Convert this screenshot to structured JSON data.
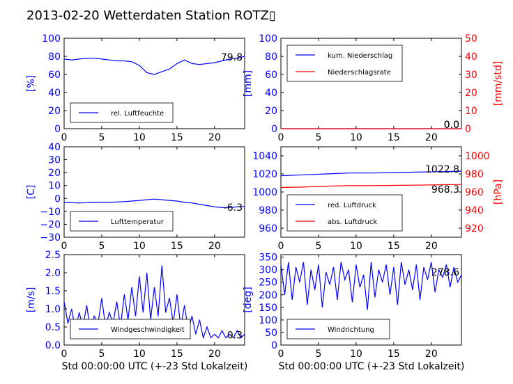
{
  "title": "2013-02-20 Wetterdaten Station ROTZ▯",
  "xlabel": "Std 00:00:00 UTC (+-23 Std Lokalzeit)",
  "colors": {
    "primary": "#0000ff",
    "secondary": "#ff0000"
  },
  "x_ticks": [
    "0",
    "5",
    "10",
    "15",
    "20"
  ],
  "chart_data": [
    {
      "id": "humidity",
      "type": "line",
      "ylabel": "[%]",
      "ylim": [
        0,
        100
      ],
      "yticks": [
        "0",
        "20",
        "40",
        "60",
        "80",
        "100"
      ],
      "legend": "rel. Luftfeuchte",
      "legend_loc": "lower-left",
      "annotation": "79.8",
      "series": [
        {
          "name": "rel. Luftfeuchte",
          "color": "#0000ff",
          "x": [
            0,
            1,
            2,
            3,
            4,
            5,
            6,
            7,
            8,
            9,
            10,
            11,
            12,
            13,
            14,
            15,
            16,
            17,
            18,
            19,
            20,
            21,
            22,
            23,
            24
          ],
          "y": [
            77,
            76,
            77,
            78,
            78,
            77,
            76,
            75,
            75,
            74,
            70,
            62,
            60,
            63,
            66,
            72,
            76,
            72,
            71,
            72,
            73,
            75,
            77,
            78,
            80
          ]
        }
      ]
    },
    {
      "id": "precip",
      "type": "line",
      "ylabel": "[mm]",
      "ylim": [
        0,
        100
      ],
      "yticks": [
        "0",
        "20",
        "40",
        "60",
        "80",
        "100"
      ],
      "ylabel2": "[mm/std]",
      "ylim2": [
        0,
        50
      ],
      "yticks2": [
        "0",
        "10",
        "20",
        "30",
        "40",
        "50"
      ],
      "legend_loc": "upper-left",
      "annotations": [
        "0.0",
        "0.0"
      ],
      "series": [
        {
          "name": "kum. Niederschlag",
          "color": "#0000ff",
          "axis": "left",
          "x": [
            0,
            24
          ],
          "y": [
            0,
            0
          ]
        },
        {
          "name": "Niederschlagsrate",
          "color": "#ff0000",
          "axis": "right",
          "x": [
            0,
            24
          ],
          "y": [
            0,
            0
          ]
        }
      ]
    },
    {
      "id": "temperature",
      "type": "line",
      "ylabel": "[C]",
      "ylim": [
        -30,
        40
      ],
      "yticks": [
        "−30",
        "−20",
        "−10",
        "0",
        "10",
        "20",
        "30",
        "40"
      ],
      "legend": "Lufttemperatur",
      "legend_loc": "lower-left",
      "annotation": "-6.3",
      "series": [
        {
          "name": "Lufttemperatur",
          "color": "#0000ff",
          "x": [
            0,
            2,
            4,
            6,
            8,
            10,
            11,
            12,
            13,
            14,
            15,
            16,
            17,
            18,
            19,
            20,
            21,
            22,
            23,
            24
          ],
          "y": [
            -3,
            -3.5,
            -3,
            -3,
            -2.5,
            -1.5,
            -1,
            -0.5,
            -1,
            -1.5,
            -2,
            -3,
            -3.5,
            -4.5,
            -5.5,
            -6.5,
            -7,
            -7,
            -6.5,
            -6.3
          ]
        }
      ]
    },
    {
      "id": "pressure",
      "type": "line",
      "ylabel": "",
      "ylim": [
        950,
        1050
      ],
      "yticks": [
        "960",
        "980",
        "1000",
        "1020",
        "1040"
      ],
      "ylabel2": "[hPa]",
      "ylim2": [
        910,
        1010
      ],
      "yticks2": [
        "920",
        "940",
        "960",
        "980",
        "1000"
      ],
      "legend_loc": "lower-left",
      "annotations": [
        "1022.8",
        "968.3"
      ],
      "series": [
        {
          "name": "red. Luftdruck",
          "color": "#0000ff",
          "axis": "left",
          "x": [
            0,
            3,
            6,
            9,
            12,
            15,
            18,
            21,
            24
          ],
          "y": [
            1018,
            1019,
            1020,
            1021,
            1021,
            1021.5,
            1022,
            1022.5,
            1023
          ]
        },
        {
          "name": "abs. Luftdruck",
          "color": "#ff0000",
          "axis": "right",
          "x": [
            0,
            3,
            6,
            9,
            12,
            15,
            18,
            21,
            24
          ],
          "y": [
            965,
            965.5,
            966.5,
            967,
            967,
            967.3,
            967.6,
            968,
            968.3
          ]
        }
      ]
    },
    {
      "id": "wind_speed",
      "type": "line",
      "ylabel": "[m/s]",
      "ylim": [
        0,
        2.5
      ],
      "yticks": [
        "0.0",
        "0.5",
        "1.0",
        "1.5",
        "2.0",
        "2.5"
      ],
      "legend": "Windgeschwindigkeit",
      "legend_loc": "lower-center",
      "annotation": "0.3",
      "series": [
        {
          "name": "Windgeschwindigkeit",
          "color": "#0000ff",
          "x": [
            0,
            0.5,
            1,
            1.5,
            2,
            2.5,
            3,
            3.5,
            4,
            4.5,
            5,
            5.5,
            6,
            6.5,
            7,
            7.5,
            8,
            8.5,
            9,
            9.5,
            10,
            10.5,
            11,
            11.5,
            12,
            12.5,
            13,
            13.5,
            14,
            14.5,
            15,
            15.5,
            16,
            16.5,
            17,
            17.5,
            18,
            18.5,
            19,
            19.5,
            20,
            20.5,
            21,
            21.5,
            22,
            22.5,
            23,
            23.5,
            24
          ],
          "y": [
            1.2,
            0.6,
            1.0,
            0.4,
            0.9,
            0.5,
            1.1,
            0.4,
            0.8,
            0.6,
            1.3,
            0.5,
            0.9,
            0.6,
            1.2,
            0.5,
            1.4,
            0.7,
            1.6,
            0.8,
            1.9,
            0.9,
            2.0,
            0.7,
            1.6,
            0.8,
            2.2,
            0.9,
            1.3,
            0.6,
            1.4,
            0.5,
            1.1,
            0.4,
            0.8,
            0.3,
            0.7,
            0.2,
            0.5,
            0.2,
            0.3,
            0.2,
            0.4,
            0.2,
            0.3,
            0.2,
            0.4,
            0.2,
            0.3
          ]
        }
      ]
    },
    {
      "id": "wind_direction",
      "type": "line",
      "ylabel": "[deg]",
      "ylim": [
        0,
        360
      ],
      "yticks": [
        "0",
        "50",
        "100",
        "150",
        "200",
        "250",
        "300",
        "350"
      ],
      "legend": "Windrichtung",
      "legend_loc": "lower-left",
      "annotation": "278.6",
      "series": [
        {
          "name": "Windrichtung",
          "color": "#0000ff",
          "x": [
            0,
            0.5,
            1,
            1.5,
            2,
            2.5,
            3,
            3.5,
            4,
            4.5,
            5,
            5.5,
            6,
            6.5,
            7,
            7.5,
            8,
            8.5,
            9,
            9.5,
            10,
            10.5,
            11,
            11.5,
            12,
            12.5,
            13,
            13.5,
            14,
            14.5,
            15,
            15.5,
            16,
            16.5,
            17,
            17.5,
            18,
            18.5,
            19,
            19.5,
            20,
            20.5,
            21,
            21.5,
            22,
            22.5,
            23,
            23.5,
            24
          ],
          "y": [
            320,
            200,
            330,
            180,
            310,
            250,
            330,
            160,
            300,
            220,
            320,
            150,
            290,
            240,
            310,
            180,
            330,
            260,
            300,
            170,
            320,
            230,
            280,
            140,
            330,
            190,
            300,
            250,
            320,
            200,
            310,
            160,
            330,
            240,
            300,
            220,
            320,
            180,
            310,
            260,
            330,
            210,
            300,
            270,
            320,
            230,
            310,
            250,
            279
          ]
        }
      ]
    }
  ]
}
